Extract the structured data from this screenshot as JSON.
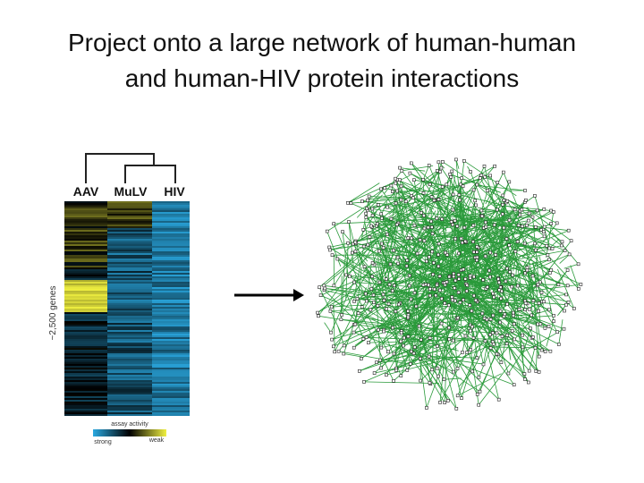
{
  "slide": {
    "title": [
      "Project onto a large network of human-human",
      "and human-HIV protein interactions"
    ],
    "heatmap": {
      "columns": [
        "AAV",
        "MuLV",
        "HIV"
      ],
      "row_label": "~2,500 genes",
      "legend_title": "assay activity",
      "legend_low": "strong",
      "legend_high": "weak"
    }
  }
}
